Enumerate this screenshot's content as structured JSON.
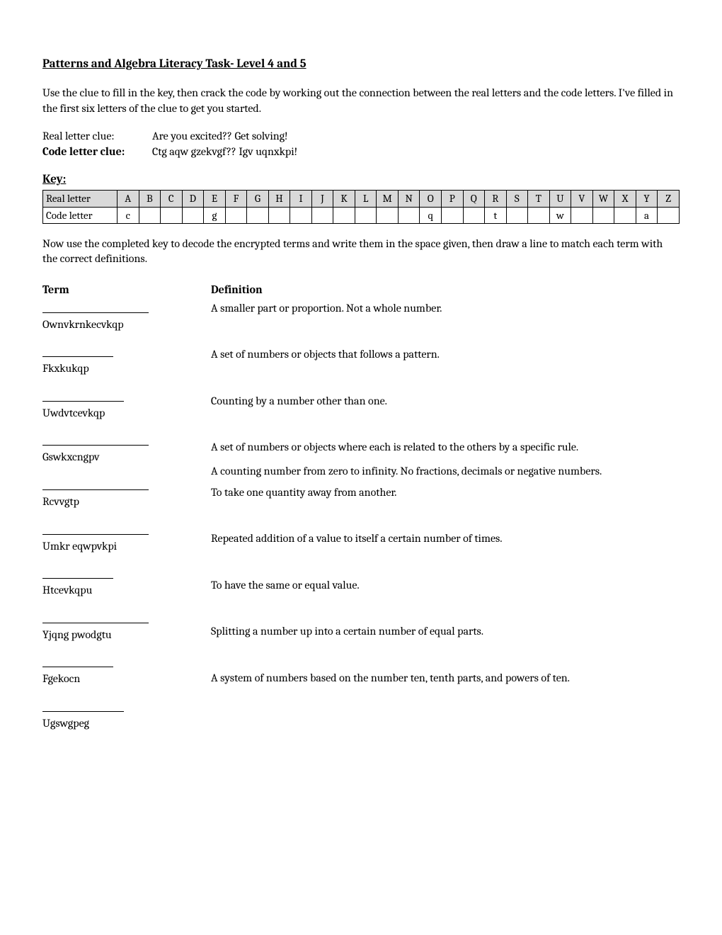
{
  "title": "Patterns and Algebra Literacy Task- Level 4 and 5",
  "intro": "Use the clue to fill in the key, then crack the code by working out the connection between the real letters and the code letters. I've filled in the first six letters of the clue to get you started.",
  "clue": {
    "real_label": "Real letter clue:",
    "real_text": "Are you excited??  Get solving!",
    "code_label": "Code letter clue:",
    "code_text": "Ctg aqw gzekvgf?? Igv uqnxkpi!"
  },
  "key_heading": "Key:",
  "key_table": {
    "row1_label": "Real letter",
    "row2_label": "Code letter",
    "letters": [
      "A",
      "B",
      "C",
      "D",
      "E",
      "F",
      "G",
      "H",
      "I",
      "J",
      "K",
      "L",
      "M",
      "N",
      "O",
      "P",
      "Q",
      "R",
      "S",
      "T",
      "U",
      "V",
      "W",
      "X",
      "Y",
      "Z"
    ],
    "codes": [
      "c",
      "",
      "",
      "",
      "g",
      "",
      "",
      "",
      "",
      "",
      "",
      "",
      "",
      "",
      "q",
      "",
      "",
      "t",
      "",
      "",
      "w",
      "",
      "",
      "",
      "a",
      ""
    ]
  },
  "instruction": "Now use the completed key to decode the encrypted terms and write them in the space given, then draw a line to match each term with the correct definitions.",
  "headings": {
    "term": "Term",
    "definition": "Definition"
  },
  "terms": [
    {
      "code": "Ownvkrnkecvkqp",
      "line_w": "w1"
    },
    {
      "code": "Fkxkukqp",
      "line_w": "w2"
    },
    {
      "code": "Uwdvtcevkqp",
      "line_w": "w3"
    },
    {
      "code": "Gswkxcngpv",
      "line_w": "w1"
    },
    {
      "code": "Rcvvgtp",
      "line_w": "w1"
    },
    {
      "code": "Umkr eqwpvkpi",
      "line_w": "w1"
    },
    {
      "code": "Htcevkqpu",
      "line_w": "w2"
    },
    {
      "code": "Yjqng pwodgtu",
      "line_w": "w1"
    },
    {
      "code": "Fgekocn",
      "line_w": "w2"
    },
    {
      "code": "Ugswgpeg",
      "line_w": "w3"
    }
  ],
  "definitions": [
    "A smaller part or proportion. Not a whole number.",
    "A set of numbers or objects that follows a pattern.",
    "Counting by a number other than one.",
    "A set of numbers or objects where each is related to the others by a specific rule.",
    "A counting number from zero to infinity. No fractions, decimals or negative numbers.",
    "To take one quantity away from another.",
    "Repeated addition of a value to itself a certain number of times.",
    "To have the same or equal value.",
    "Splitting a number up into a certain number of equal parts.",
    "A system of numbers based on the number ten, tenth parts, and powers of ten."
  ]
}
